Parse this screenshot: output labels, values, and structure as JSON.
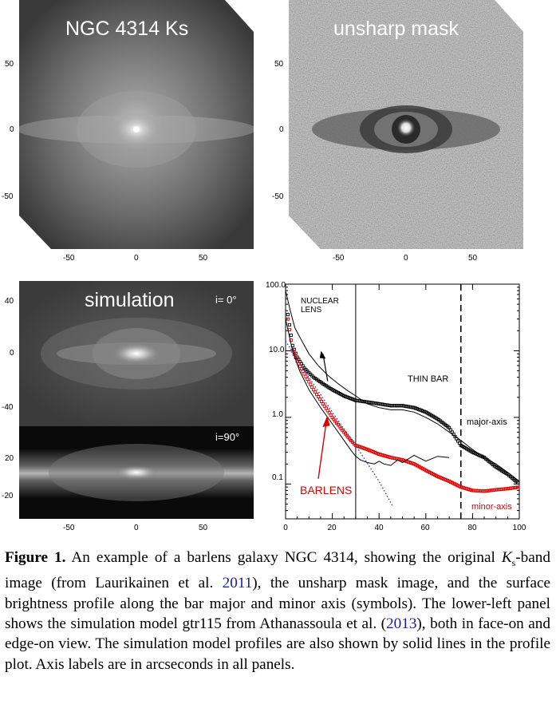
{
  "panels": {
    "top_left": {
      "title": "NGC 4314 Ks",
      "y_ticks": [
        "50",
        "0",
        "-50"
      ],
      "x_ticks": [
        "-50",
        "0",
        "50"
      ]
    },
    "top_right": {
      "title": "unsharp mask",
      "y_ticks": [
        "50",
        "0",
        "-50"
      ],
      "x_ticks": [
        "-50",
        "0",
        "50"
      ]
    },
    "bottom_left": {
      "title": "simulation",
      "label_faceon": "i= 0°",
      "label_edgeon": "i=90°",
      "y_ticks_faceon": [
        "40",
        "0",
        "-40"
      ],
      "y_ticks_edgeon": [
        "20",
        "-20"
      ],
      "x_ticks": [
        "-50",
        "0",
        "50"
      ]
    }
  },
  "chart_data": {
    "type": "line",
    "scale_y": "log",
    "xlim": [
      0,
      100
    ],
    "ylim": [
      0.03,
      100.0
    ],
    "x_ticks": [
      "0",
      "20",
      "40",
      "60",
      "80",
      "100"
    ],
    "y_ticks": [
      "100.0",
      "10.0",
      "1.0",
      "0.1"
    ],
    "annotations": {
      "nuclear_lens": [
        "NUCLEAR",
        "LENS"
      ],
      "thin_bar": "THIN BAR",
      "barlens": "BARLENS",
      "major_axis": "major-axis",
      "minor_axis": "minor-axis"
    },
    "vlines": [
      {
        "x": 30,
        "style": "solid"
      },
      {
        "x": 75,
        "style": "dashed"
      }
    ],
    "series": [
      {
        "name": "major-axis",
        "style": "symbols",
        "color": "#000000",
        "x": [
          1,
          3,
          5,
          8,
          12,
          16,
          20,
          25,
          30,
          35,
          40,
          45,
          50,
          55,
          60,
          65,
          70,
          75,
          80,
          85,
          90,
          95,
          100
        ],
        "y": [
          35,
          12,
          8,
          5.5,
          4.0,
          3.2,
          2.6,
          2.1,
          1.8,
          1.7,
          1.6,
          1.5,
          1.5,
          1.4,
          1.2,
          0.95,
          0.7,
          0.38,
          0.3,
          0.25,
          0.18,
          0.14,
          0.1
        ]
      },
      {
        "name": "minor-axis",
        "style": "symbols",
        "color": "#dd0000",
        "x": [
          1,
          3,
          5,
          8,
          12,
          16,
          20,
          25,
          28,
          30,
          35,
          40,
          45,
          50,
          55,
          60,
          65,
          70,
          75,
          80,
          85,
          90,
          95,
          100
        ],
        "y": [
          30,
          10,
          7,
          4.5,
          2.6,
          1.6,
          1.0,
          0.6,
          0.45,
          0.38,
          0.33,
          0.28,
          0.25,
          0.23,
          0.2,
          0.16,
          0.13,
          0.11,
          0.09,
          0.08,
          0.078,
          0.082,
          0.085,
          0.09
        ]
      },
      {
        "style": "solid",
        "color": "#000000",
        "x": [
          0,
          2,
          4,
          7,
          10,
          14,
          18,
          22,
          26,
          30,
          35,
          40,
          45,
          50,
          55,
          60,
          65,
          70,
          75,
          80,
          85,
          90,
          95,
          100
        ],
        "y": [
          80,
          40,
          22,
          14,
          9,
          6,
          4.3,
          3.3,
          2.6,
          2.1,
          1.6,
          1.4,
          1.3,
          1.3,
          1.2,
          1.0,
          0.8,
          0.6,
          0.45,
          0.33,
          0.25,
          0.2,
          0.15,
          0.11
        ]
      },
      {
        "style": "solid",
        "color": "#000000",
        "x": [
          0,
          3,
          6,
          10,
          15,
          20,
          25,
          28,
          30,
          32,
          35,
          38,
          40,
          42,
          45,
          48,
          50,
          55,
          60,
          65,
          70
        ],
        "y": [
          30,
          10,
          5,
          2.6,
          1.4,
          0.8,
          0.45,
          0.32,
          0.26,
          0.23,
          0.21,
          0.2,
          0.22,
          0.2,
          0.19,
          0.23,
          0.21,
          0.27,
          0.22,
          0.26,
          0.25
        ]
      },
      {
        "style": "dotted",
        "color": "#2233cc",
        "x": [
          0,
          10,
          20,
          30,
          40,
          46
        ],
        "y": [
          14,
          4.0,
          1.2,
          0.38,
          0.11,
          0.045
        ]
      }
    ]
  },
  "caption": {
    "fig_label": "Figure 1.",
    "text_1": " An example of a barlens galaxy NGC 4314, showing the original ",
    "ks_symbol": "K",
    "ks_sub": "s",
    "text_2": "-band image (from Laurikainen et al. ",
    "ref_2011": "2011",
    "text_3": "), the unsharp mask image, and the surface brightness profile along the bar major and minor axis (symbols). The lower-left panel shows the simulation model gtr115 from Athanassoula et al. (",
    "ref_2013": "2013",
    "text_4": "), both in face-on and edge-on view. The simulation model profiles are also shown by solid lines in the profile plot. Axis labels are in arcseconds in all panels."
  }
}
